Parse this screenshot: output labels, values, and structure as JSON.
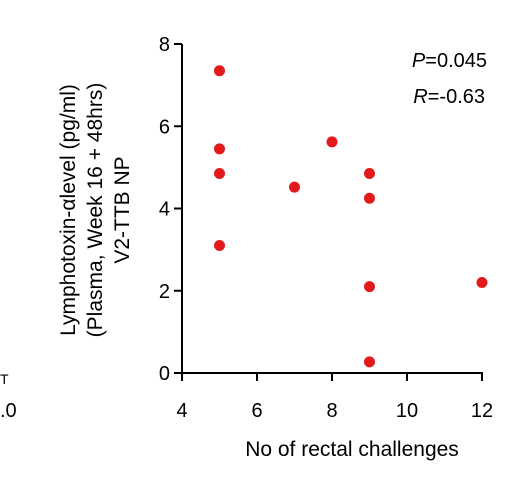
{
  "chart_data": {
    "type": "scatter",
    "xlabel": "No of rectal challenges",
    "ylabel_lines": [
      "Lymphotoxin-αlevel (pg/ml)",
      "(Plasma, Week 16 + 48hrs)",
      "V2-TTB NP"
    ],
    "xlim": [
      4,
      12
    ],
    "ylim": [
      0,
      8
    ],
    "x_ticks": [
      4,
      6,
      8,
      10,
      12
    ],
    "y_ticks": [
      0,
      2,
      4,
      6,
      8
    ],
    "x_tick_labels": [
      "4",
      "6",
      "8",
      "10",
      "12"
    ],
    "y_tick_labels": [
      "0",
      "2",
      "4",
      "6",
      "8"
    ],
    "points": [
      {
        "x": 5,
        "y": 7.35
      },
      {
        "x": 5,
        "y": 5.45
      },
      {
        "x": 5,
        "y": 4.85
      },
      {
        "x": 5,
        "y": 3.1
      },
      {
        "x": 7,
        "y": 4.52
      },
      {
        "x": 8,
        "y": 5.62
      },
      {
        "x": 9,
        "y": 4.85
      },
      {
        "x": 9,
        "y": 4.25
      },
      {
        "x": 9,
        "y": 2.1
      },
      {
        "x": 9,
        "y": 0.27
      },
      {
        "x": 12,
        "y": 2.2
      }
    ],
    "point_color": "#e31a1c",
    "annotations": {
      "p_label": "P",
      "p_value": "=0.045",
      "r_label": "R",
      "r_value": "=-0.63"
    },
    "grid": false,
    "clipped_left_fragments": [
      ".0",
      "T"
    ]
  }
}
